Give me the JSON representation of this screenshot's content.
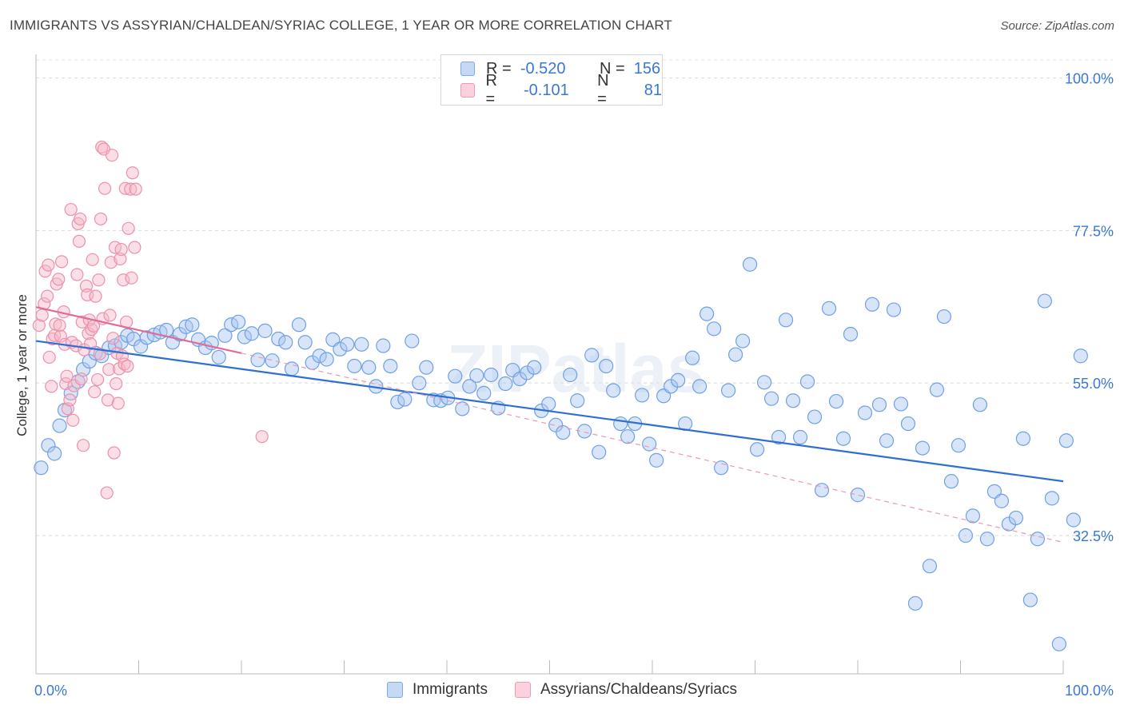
{
  "title": "IMMIGRANTS VS ASSYRIAN/CHALDEAN/SYRIAC COLLEGE, 1 YEAR OR MORE CORRELATION CHART",
  "source": "Source: ZipAtlas.com",
  "watermark": "ZIPatlas",
  "legend_top": {
    "rows": [
      {
        "r_label": "R =",
        "r_value": "-0.520",
        "n_label": "N =",
        "n_value": "156",
        "color": "#a8c6f0"
      },
      {
        "r_label": "R =",
        "r_value": "-0.101",
        "n_label": "N =",
        "n_value": "81",
        "color": "#f5b8c8"
      }
    ]
  },
  "chart_data": {
    "type": "scatter",
    "title": "IMMIGRANTS VS ASSYRIAN/CHALDEAN/SYRIAC COLLEGE, 1 YEAR OR MORE CORRELATION CHART",
    "xlabel": "",
    "ylabel": "College, 1 year or more",
    "xlim": [
      0,
      100
    ],
    "ylim": [
      15,
      104
    ],
    "x_tick_labels": [
      "0.0%",
      "100.0%"
    ],
    "y_tick_values": [
      32.5,
      55.0,
      77.5,
      100.0
    ],
    "y_tick_labels": [
      "32.5%",
      "55.0%",
      "77.5%",
      "100.0%"
    ],
    "grid": "horizontal dashed",
    "legend": "bottom-center",
    "series": [
      {
        "name": "Immigrants",
        "color": "#6fa0e6",
        "fill": "#a8c6f0",
        "trend": {
          "x": [
            0,
            100
          ],
          "y": [
            61.2,
            40.5
          ],
          "color": "#2f6fd0"
        },
        "points": [
          [
            0.5,
            42.5
          ],
          [
            1.2,
            45.8
          ],
          [
            1.8,
            44.6
          ],
          [
            2.3,
            48.7
          ],
          [
            2.8,
            51.0
          ],
          [
            3.4,
            53.5
          ],
          [
            4.1,
            55.2
          ],
          [
            4.6,
            57.0
          ],
          [
            5.2,
            58.2
          ],
          [
            5.8,
            59.4
          ],
          [
            6.4,
            59.0
          ],
          [
            7.1,
            60.2
          ],
          [
            7.7,
            60.5
          ],
          [
            8.3,
            61.0
          ],
          [
            8.9,
            62.0
          ],
          [
            9.5,
            61.5
          ],
          [
            10.2,
            60.4
          ],
          [
            10.8,
            61.7
          ],
          [
            11.5,
            62.1
          ],
          [
            12.1,
            62.5
          ],
          [
            12.7,
            62.8
          ],
          [
            13.3,
            61.0
          ],
          [
            14.0,
            62.2
          ],
          [
            14.6,
            63.3
          ],
          [
            15.2,
            63.6
          ],
          [
            15.8,
            61.4
          ],
          [
            16.5,
            60.2
          ],
          [
            17.1,
            60.9
          ],
          [
            17.8,
            58.8
          ],
          [
            18.4,
            62.0
          ],
          [
            19.0,
            63.6
          ],
          [
            19.7,
            64.0
          ],
          [
            20.3,
            61.8
          ],
          [
            21.0,
            62.3
          ],
          [
            21.6,
            58.4
          ],
          [
            22.3,
            62.7
          ],
          [
            23.0,
            58.3
          ],
          [
            23.6,
            61.5
          ],
          [
            24.3,
            61.0
          ],
          [
            24.9,
            57.1
          ],
          [
            25.6,
            63.6
          ],
          [
            26.2,
            61.0
          ],
          [
            26.9,
            58.0
          ],
          [
            27.6,
            59.0
          ],
          [
            28.3,
            58.5
          ],
          [
            28.9,
            61.4
          ],
          [
            29.6,
            60.0
          ],
          [
            30.3,
            60.7
          ],
          [
            31.0,
            57.5
          ],
          [
            31.7,
            60.7
          ],
          [
            32.4,
            57.3
          ],
          [
            33.1,
            54.5
          ],
          [
            33.8,
            60.5
          ],
          [
            34.5,
            57.5
          ],
          [
            35.2,
            52.2
          ],
          [
            35.9,
            52.6
          ],
          [
            36.6,
            61.2
          ],
          [
            37.3,
            55.0
          ],
          [
            38.0,
            57.3
          ],
          [
            38.7,
            52.5
          ],
          [
            39.4,
            52.4
          ],
          [
            40.1,
            52.8
          ],
          [
            40.8,
            56.0
          ],
          [
            41.5,
            51.2
          ],
          [
            42.2,
            54.5
          ],
          [
            42.9,
            56.1
          ],
          [
            43.6,
            53.5
          ],
          [
            44.3,
            56.2
          ],
          [
            45.0,
            51.3
          ],
          [
            45.7,
            54.9
          ],
          [
            46.4,
            56.9
          ],
          [
            47.1,
            55.6
          ],
          [
            47.8,
            56.5
          ],
          [
            48.5,
            57.3
          ],
          [
            49.2,
            50.9
          ],
          [
            49.9,
            51.9
          ],
          [
            50.6,
            48.8
          ],
          [
            51.3,
            47.7
          ],
          [
            52.0,
            56.2
          ],
          [
            52.7,
            52.4
          ],
          [
            53.4,
            47.9
          ],
          [
            54.1,
            59.1
          ],
          [
            54.8,
            44.8
          ],
          [
            55.5,
            57.5
          ],
          [
            56.2,
            53.9
          ],
          [
            56.9,
            49.0
          ],
          [
            57.6,
            47.1
          ],
          [
            58.3,
            49.0
          ],
          [
            59.0,
            53.2
          ],
          [
            59.7,
            46.0
          ],
          [
            60.4,
            43.6
          ],
          [
            61.1,
            53.1
          ],
          [
            61.8,
            54.5
          ],
          [
            62.5,
            55.4
          ],
          [
            63.2,
            49.0
          ],
          [
            63.9,
            58.7
          ],
          [
            64.6,
            54.5
          ],
          [
            65.3,
            65.2
          ],
          [
            66.0,
            63.0
          ],
          [
            66.7,
            42.5
          ],
          [
            67.4,
            53.9
          ],
          [
            68.1,
            59.2
          ],
          [
            68.8,
            61.2
          ],
          [
            69.5,
            72.5
          ],
          [
            70.2,
            45.2
          ],
          [
            70.9,
            55.1
          ],
          [
            71.6,
            52.7
          ],
          [
            72.3,
            47.0
          ],
          [
            73.0,
            64.3
          ],
          [
            73.7,
            52.4
          ],
          [
            74.4,
            47.0
          ],
          [
            75.1,
            55.2
          ],
          [
            75.8,
            50.0
          ],
          [
            76.5,
            39.2
          ],
          [
            77.2,
            66.0
          ],
          [
            77.9,
            52.3
          ],
          [
            78.6,
            46.8
          ],
          [
            79.3,
            62.2
          ],
          [
            80.0,
            38.5
          ],
          [
            80.7,
            50.6
          ],
          [
            81.4,
            66.6
          ],
          [
            82.1,
            51.8
          ],
          [
            82.8,
            46.5
          ],
          [
            83.5,
            65.8
          ],
          [
            84.2,
            51.9
          ],
          [
            84.9,
            49.0
          ],
          [
            85.6,
            22.5
          ],
          [
            86.3,
            45.4
          ],
          [
            87.0,
            28.0
          ],
          [
            87.7,
            54.0
          ],
          [
            88.4,
            64.8
          ],
          [
            89.1,
            40.5
          ],
          [
            89.8,
            45.8
          ],
          [
            90.5,
            32.5
          ],
          [
            91.2,
            35.4
          ],
          [
            91.9,
            51.8
          ],
          [
            92.6,
            32.0
          ],
          [
            93.3,
            39.0
          ],
          [
            94.0,
            37.6
          ],
          [
            94.7,
            34.2
          ],
          [
            95.4,
            35.1
          ],
          [
            96.1,
            46.8
          ],
          [
            96.8,
            23.0
          ],
          [
            97.5,
            32.0
          ],
          [
            98.2,
            67.1
          ],
          [
            98.9,
            38.0
          ],
          [
            99.6,
            16.5
          ],
          [
            100.3,
            46.5
          ],
          [
            101.0,
            34.8
          ],
          [
            101.7,
            59.0
          ]
        ]
      },
      {
        "name": "Assyrians/Chaldeans/Syriacs",
        "color": "#ec90ac",
        "fill": "#f5b8c8",
        "trend": {
          "x": [
            0,
            20
          ],
          "y": [
            66.2,
            59.4
          ],
          "color": "#e06c94"
        },
        "trend_dashed": {
          "x": [
            20,
            100
          ],
          "y": [
            59.4,
            31.5
          ],
          "color": "#e79ab4"
        },
        "points": [
          [
            0.3,
            63.5
          ],
          [
            0.6,
            65.0
          ],
          [
            0.8,
            66.7
          ],
          [
            0.9,
            71.5
          ],
          [
            1.1,
            67.8
          ],
          [
            1.2,
            72.4
          ],
          [
            1.3,
            58.8
          ],
          [
            1.5,
            54.5
          ],
          [
            1.6,
            61.5
          ],
          [
            1.8,
            62.0
          ],
          [
            1.9,
            63.7
          ],
          [
            2.0,
            69.6
          ],
          [
            2.2,
            70.3
          ],
          [
            2.3,
            63.5
          ],
          [
            2.4,
            61.9
          ],
          [
            2.5,
            72.9
          ],
          [
            2.7,
            65.5
          ],
          [
            2.8,
            60.7
          ],
          [
            2.9,
            54.9
          ],
          [
            3.0,
            56.0
          ],
          [
            3.1,
            51.2
          ],
          [
            3.3,
            52.5
          ],
          [
            3.4,
            80.6
          ],
          [
            3.5,
            61.0
          ],
          [
            3.6,
            49.5
          ],
          [
            3.7,
            54.6
          ],
          [
            3.9,
            60.5
          ],
          [
            4.0,
            71.0
          ],
          [
            4.1,
            78.5
          ],
          [
            4.2,
            75.9
          ],
          [
            4.3,
            79.2
          ],
          [
            4.4,
            55.6
          ],
          [
            4.5,
            64.0
          ],
          [
            4.6,
            45.8
          ],
          [
            4.7,
            59.9
          ],
          [
            4.9,
            69.3
          ],
          [
            5.0,
            68.0
          ],
          [
            5.1,
            62.3
          ],
          [
            5.2,
            64.3
          ],
          [
            5.3,
            60.8
          ],
          [
            5.4,
            62.9
          ],
          [
            5.5,
            73.2
          ],
          [
            5.6,
            63.4
          ],
          [
            5.7,
            53.7
          ],
          [
            5.8,
            67.8
          ],
          [
            6.0,
            55.5
          ],
          [
            6.1,
            70.2
          ],
          [
            6.2,
            59.3
          ],
          [
            6.3,
            79.2
          ],
          [
            6.4,
            89.8
          ],
          [
            6.5,
            64.5
          ],
          [
            6.6,
            89.5
          ],
          [
            6.7,
            83.7
          ],
          [
            6.9,
            38.8
          ],
          [
            7.0,
            52.5
          ],
          [
            7.1,
            57.0
          ],
          [
            7.2,
            65.0
          ],
          [
            7.3,
            72.8
          ],
          [
            7.4,
            88.6
          ],
          [
            7.5,
            61.6
          ],
          [
            7.6,
            44.7
          ],
          [
            7.7,
            75.0
          ],
          [
            7.8,
            54.9
          ],
          [
            7.9,
            59.4
          ],
          [
            8.0,
            52.0
          ],
          [
            8.1,
            57.1
          ],
          [
            8.2,
            73.3
          ],
          [
            8.3,
            74.7
          ],
          [
            8.4,
            59.0
          ],
          [
            8.5,
            70.2
          ],
          [
            8.6,
            57.8
          ],
          [
            8.7,
            83.7
          ],
          [
            8.8,
            64.0
          ],
          [
            8.9,
            57.5
          ],
          [
            9.0,
            77.8
          ],
          [
            9.2,
            83.6
          ],
          [
            9.3,
            70.5
          ],
          [
            9.4,
            86.0
          ],
          [
            9.6,
            75.0
          ],
          [
            9.7,
            83.6
          ],
          [
            22.0,
            47.1
          ]
        ]
      }
    ]
  }
}
